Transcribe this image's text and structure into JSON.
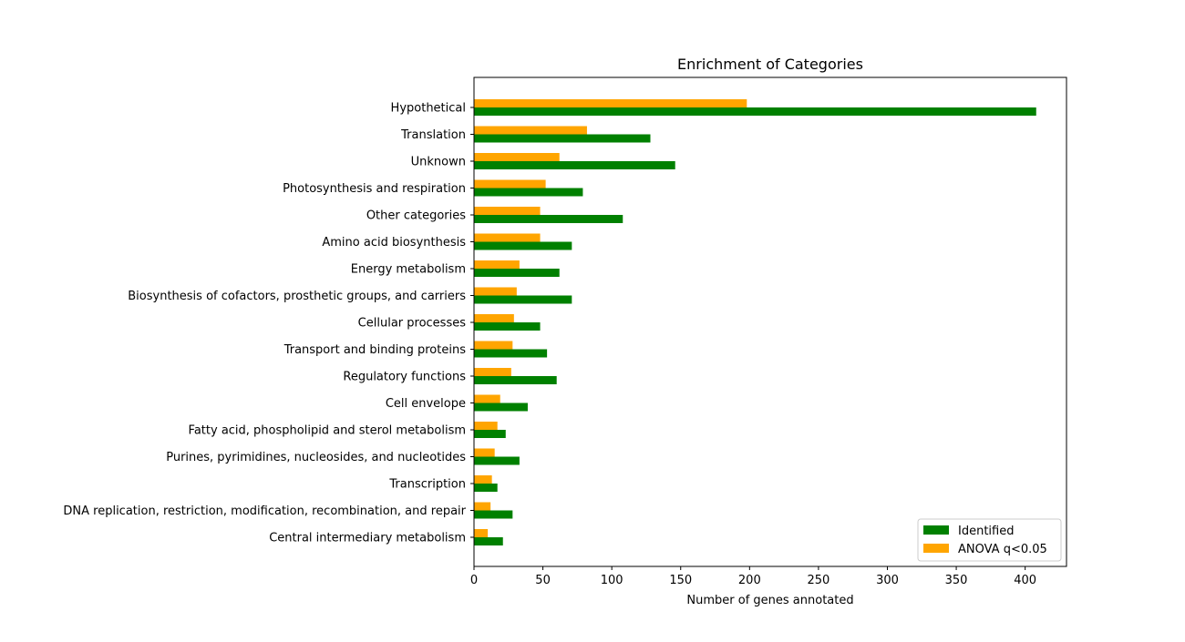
{
  "chart_data": {
    "type": "bar",
    "orientation": "horizontal",
    "title": "Enrichment of Categories",
    "xlabel": "Number of genes annotated",
    "ylabel": "",
    "xlim": [
      0,
      430
    ],
    "xticks": [
      0,
      50,
      100,
      150,
      200,
      250,
      300,
      350,
      400
    ],
    "grid": false,
    "legend_position": "bottom-right",
    "categories": [
      "Hypothetical",
      "Translation",
      "Unknown",
      "Photosynthesis and respiration",
      "Other categories",
      "Amino acid biosynthesis",
      "Energy metabolism",
      "Biosynthesis of cofactors, prosthetic groups, and carriers",
      "Cellular processes",
      "Transport and binding proteins",
      "Regulatory functions",
      "Cell envelope",
      "Fatty acid, phospholipid and sterol metabolism",
      "Purines, pyrimidines, nucleosides, and nucleotides",
      "Transcription",
      "DNA replication, restriction, modification, recombination, and repair",
      "Central intermediary metabolism"
    ],
    "series": [
      {
        "name": "Identified",
        "color": "#008000",
        "values": [
          408,
          128,
          146,
          79,
          108,
          71,
          62,
          71,
          48,
          53,
          60,
          39,
          23,
          33,
          17,
          28,
          21
        ]
      },
      {
        "name": "ANOVA q<0.05",
        "color": "#ffa500",
        "values": [
          198,
          82,
          62,
          52,
          48,
          48,
          33,
          31,
          29,
          28,
          27,
          19,
          17,
          15,
          13,
          12,
          10
        ]
      }
    ]
  }
}
